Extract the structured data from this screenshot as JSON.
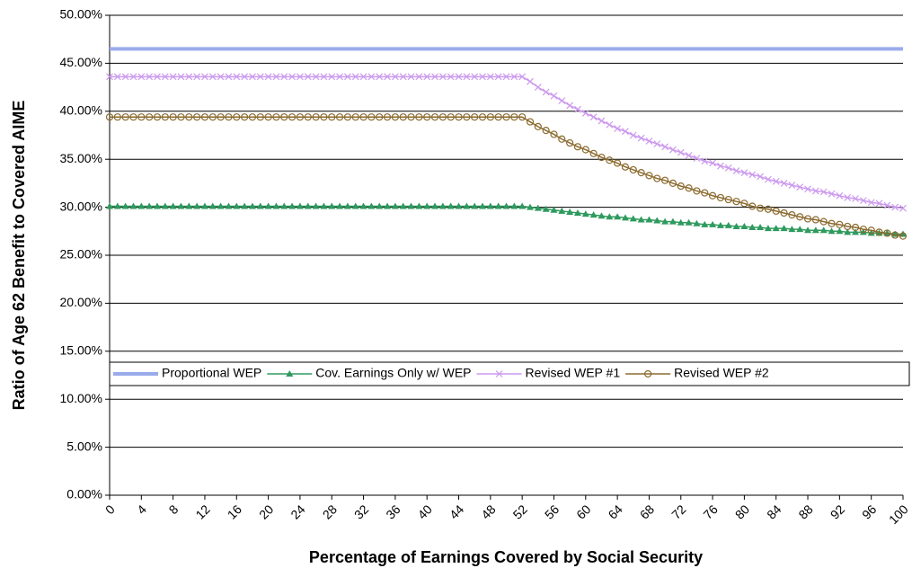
{
  "chart_data": {
    "type": "line",
    "xlabel": "Percentage of Earnings Covered by Social Security",
    "ylabel": "Ratio of Age 62 Benefit to Covered AIME",
    "x": [
      0,
      1,
      2,
      3,
      4,
      5,
      6,
      7,
      8,
      9,
      10,
      11,
      12,
      13,
      14,
      15,
      16,
      17,
      18,
      19,
      20,
      21,
      22,
      23,
      24,
      25,
      26,
      27,
      28,
      29,
      30,
      31,
      32,
      33,
      34,
      35,
      36,
      37,
      38,
      39,
      40,
      41,
      42,
      43,
      44,
      45,
      46,
      47,
      48,
      49,
      50,
      51,
      52,
      53,
      54,
      55,
      56,
      57,
      58,
      59,
      60,
      61,
      62,
      63,
      64,
      65,
      66,
      67,
      68,
      69,
      70,
      71,
      72,
      73,
      74,
      75,
      76,
      77,
      78,
      79,
      80,
      81,
      82,
      83,
      84,
      85,
      86,
      87,
      88,
      89,
      90,
      91,
      92,
      93,
      94,
      95,
      96,
      97,
      98,
      99,
      100
    ],
    "xlim": [
      0,
      100
    ],
    "xticks": [
      0,
      4,
      8,
      12,
      16,
      20,
      24,
      28,
      32,
      36,
      40,
      44,
      48,
      52,
      56,
      60,
      64,
      68,
      72,
      76,
      80,
      84,
      88,
      92,
      96,
      100
    ],
    "ylim": [
      0,
      50
    ],
    "yticks": [
      {
        "value": 0,
        "label": "0.00%"
      },
      {
        "value": 5,
        "label": "5.00%"
      },
      {
        "value": 10,
        "label": "10.00%"
      },
      {
        "value": 15,
        "label": "15.00%"
      },
      {
        "value": 20,
        "label": "20.00%"
      },
      {
        "value": 25,
        "label": "25.00%"
      },
      {
        "value": 30,
        "label": "30.00%"
      },
      {
        "value": 35,
        "label": "35.00%"
      },
      {
        "value": 40,
        "label": "40.00%"
      },
      {
        "value": 45,
        "label": "45.00%"
      },
      {
        "value": 50,
        "label": "50.00%"
      }
    ],
    "grid": true,
    "legend": "inside",
    "series": [
      {
        "name": "Proportional WEP",
        "color": "#9aabeb",
        "marker": "none",
        "values": [
          46.5,
          46.5,
          46.5,
          46.5,
          46.5,
          46.5,
          46.5,
          46.5,
          46.5,
          46.5,
          46.5,
          46.5,
          46.5,
          46.5,
          46.5,
          46.5,
          46.5,
          46.5,
          46.5,
          46.5,
          46.5,
          46.5,
          46.5,
          46.5,
          46.5,
          46.5,
          46.5,
          46.5,
          46.5,
          46.5,
          46.5,
          46.5,
          46.5,
          46.5,
          46.5,
          46.5,
          46.5,
          46.5,
          46.5,
          46.5,
          46.5,
          46.5,
          46.5,
          46.5,
          46.5,
          46.5,
          46.5,
          46.5,
          46.5,
          46.5,
          46.5,
          46.5,
          46.5,
          46.5,
          46.5,
          46.5,
          46.5,
          46.5,
          46.5,
          46.5,
          46.5,
          46.5,
          46.5,
          46.5,
          46.5,
          46.5,
          46.5,
          46.5,
          46.5,
          46.5,
          46.5,
          46.5,
          46.5,
          46.5,
          46.5,
          46.5,
          46.5,
          46.5,
          46.5,
          46.5,
          46.5,
          46.5,
          46.5,
          46.5,
          46.5,
          46.5,
          46.5,
          46.5,
          46.5,
          46.5,
          46.5,
          46.5,
          46.5,
          46.5,
          46.5,
          46.5,
          46.5,
          46.5,
          46.5,
          46.5,
          46.5
        ]
      },
      {
        "name": "Cov. Earnings Only w/ WEP",
        "color": "#2e9a5e",
        "marker": "triangle",
        "values": [
          30.1,
          30.1,
          30.1,
          30.1,
          30.1,
          30.1,
          30.1,
          30.1,
          30.1,
          30.1,
          30.1,
          30.1,
          30.1,
          30.1,
          30.1,
          30.1,
          30.1,
          30.1,
          30.1,
          30.1,
          30.1,
          30.1,
          30.1,
          30.1,
          30.1,
          30.1,
          30.1,
          30.1,
          30.1,
          30.1,
          30.1,
          30.1,
          30.1,
          30.1,
          30.1,
          30.1,
          30.1,
          30.1,
          30.1,
          30.1,
          30.1,
          30.1,
          30.1,
          30.1,
          30.1,
          30.1,
          30.1,
          30.1,
          30.1,
          30.1,
          30.1,
          30.1,
          30.1,
          30.0,
          29.9,
          29.8,
          29.7,
          29.6,
          29.5,
          29.4,
          29.3,
          29.2,
          29.1,
          29.0,
          29.0,
          28.9,
          28.8,
          28.7,
          28.7,
          28.6,
          28.5,
          28.5,
          28.4,
          28.4,
          28.3,
          28.2,
          28.2,
          28.1,
          28.1,
          28.0,
          28.0,
          27.9,
          27.9,
          27.8,
          27.8,
          27.8,
          27.7,
          27.7,
          27.6,
          27.6,
          27.6,
          27.5,
          27.5,
          27.4,
          27.4,
          27.4,
          27.3,
          27.3,
          27.3,
          27.2,
          27.2
        ]
      },
      {
        "name": "Revised WEP #1",
        "color": "#cc99ee",
        "marker": "x",
        "values": [
          43.6,
          43.6,
          43.6,
          43.6,
          43.6,
          43.6,
          43.6,
          43.6,
          43.6,
          43.6,
          43.6,
          43.6,
          43.6,
          43.6,
          43.6,
          43.6,
          43.6,
          43.6,
          43.6,
          43.6,
          43.6,
          43.6,
          43.6,
          43.6,
          43.6,
          43.6,
          43.6,
          43.6,
          43.6,
          43.6,
          43.6,
          43.6,
          43.6,
          43.6,
          43.6,
          43.6,
          43.6,
          43.6,
          43.6,
          43.6,
          43.6,
          43.6,
          43.6,
          43.6,
          43.6,
          43.6,
          43.6,
          43.6,
          43.6,
          43.6,
          43.6,
          43.6,
          43.6,
          43.1,
          42.5,
          42.0,
          41.6,
          41.1,
          40.6,
          40.2,
          39.8,
          39.4,
          39.0,
          38.6,
          38.2,
          37.9,
          37.5,
          37.2,
          36.9,
          36.6,
          36.3,
          36.0,
          35.7,
          35.4,
          35.1,
          34.8,
          34.6,
          34.3,
          34.1,
          33.8,
          33.6,
          33.4,
          33.2,
          32.9,
          32.7,
          32.5,
          32.3,
          32.1,
          31.9,
          31.7,
          31.6,
          31.4,
          31.2,
          31.0,
          30.9,
          30.7,
          30.5,
          30.4,
          30.2,
          30.0,
          29.9
        ]
      },
      {
        "name": "Revised WEP #2",
        "color": "#8b6a2e",
        "marker": "circle",
        "values": [
          39.4,
          39.4,
          39.4,
          39.4,
          39.4,
          39.4,
          39.4,
          39.4,
          39.4,
          39.4,
          39.4,
          39.4,
          39.4,
          39.4,
          39.4,
          39.4,
          39.4,
          39.4,
          39.4,
          39.4,
          39.4,
          39.4,
          39.4,
          39.4,
          39.4,
          39.4,
          39.4,
          39.4,
          39.4,
          39.4,
          39.4,
          39.4,
          39.4,
          39.4,
          39.4,
          39.4,
          39.4,
          39.4,
          39.4,
          39.4,
          39.4,
          39.4,
          39.4,
          39.4,
          39.4,
          39.4,
          39.4,
          39.4,
          39.4,
          39.4,
          39.4,
          39.4,
          39.4,
          38.9,
          38.4,
          38.0,
          37.6,
          37.1,
          36.7,
          36.3,
          36.0,
          35.6,
          35.2,
          34.9,
          34.6,
          34.2,
          33.9,
          33.6,
          33.3,
          33.0,
          32.8,
          32.5,
          32.2,
          32.0,
          31.7,
          31.5,
          31.2,
          31.0,
          30.8,
          30.6,
          30.4,
          30.1,
          29.9,
          29.8,
          29.6,
          29.4,
          29.2,
          29.0,
          28.8,
          28.7,
          28.5,
          28.3,
          28.2,
          28.0,
          27.9,
          27.7,
          27.6,
          27.4,
          27.3,
          27.1,
          27.0
        ]
      }
    ]
  }
}
